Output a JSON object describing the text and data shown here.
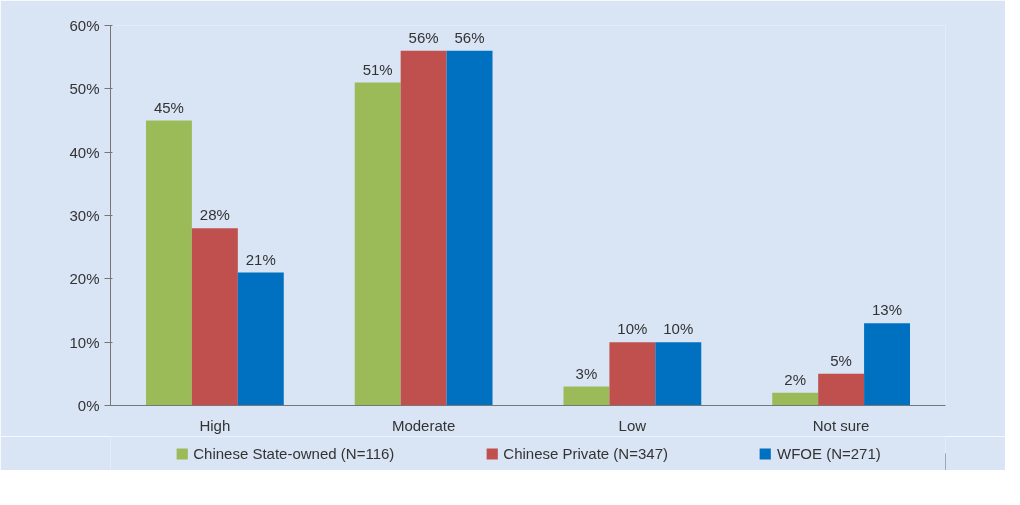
{
  "chart_data": {
    "type": "bar",
    "categories": [
      "High",
      "Moderate",
      "Low",
      "Not sure"
    ],
    "series": [
      {
        "name": "Chinese State-owned (N=116)",
        "color": "#9bbb59",
        "values": [
          45,
          51,
          3,
          2
        ],
        "value_labels": [
          "45%",
          "51%",
          "3%",
          "2%"
        ]
      },
      {
        "name": "Chinese Private (N=347)",
        "color": "#c0504d",
        "values": [
          28,
          56,
          10,
          5
        ],
        "value_labels": [
          "28%",
          "56%",
          "10%",
          "5%"
        ]
      },
      {
        "name": "WFOE (N=271)",
        "color": "#0070c0",
        "values": [
          21,
          56,
          10,
          13
        ],
        "value_labels": [
          "21%",
          "56%",
          "10%",
          "13%"
        ]
      }
    ],
    "ylim": [
      0,
      60
    ],
    "yticks": [
      {
        "value": 0,
        "label": "0%"
      },
      {
        "value": 10,
        "label": "10%"
      },
      {
        "value": 20,
        "label": "20%"
      },
      {
        "value": 30,
        "label": "30%"
      },
      {
        "value": 40,
        "label": "40%"
      },
      {
        "value": 50,
        "label": "50%"
      },
      {
        "value": 60,
        "label": "60%"
      }
    ],
    "grid": false,
    "legend": "bottom"
  }
}
